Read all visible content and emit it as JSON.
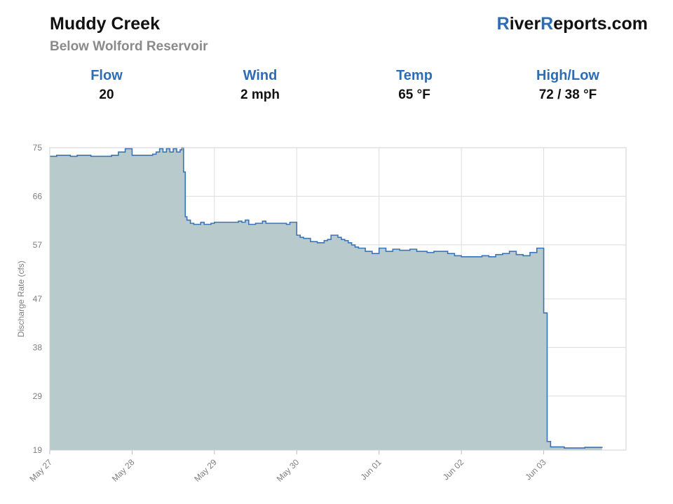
{
  "header": {
    "title": "Muddy Creek",
    "subtitle": "Below Wolford Reservoir",
    "brand_parts": [
      "R",
      "iver",
      "R",
      "eports.com"
    ]
  },
  "stats": [
    {
      "label": "Flow",
      "value": "20"
    },
    {
      "label": "Wind",
      "value": "2 mph"
    },
    {
      "label": "Temp",
      "value": "65 °F"
    },
    {
      "label": "High/Low",
      "value": "72 / 38 °F"
    }
  ],
  "colors": {
    "accent": "#2e6db4",
    "line": "#3a74b8",
    "fill": "#b9cacc",
    "grid": "#dddddd"
  },
  "chart_data": {
    "type": "area",
    "step": true,
    "ylabel": "Discharge Rate (cfs)",
    "xlabel": "",
    "ylim": [
      19,
      75
    ],
    "yticks": [
      19,
      29,
      38,
      47,
      57,
      66,
      75
    ],
    "xlim": [
      "2024-05-27",
      "2024-06-03"
    ],
    "xtick_labels": [
      "May 27",
      "May 28",
      "May 29",
      "May 30",
      "Jun 01",
      "Jun 02",
      "Jun 03"
    ],
    "xtick_dates": [
      "2024-05-27",
      "2024-05-28",
      "2024-05-29",
      "2024-05-30",
      "2024-05-31",
      "2024-06-01",
      "2024-06-02"
    ],
    "grid": true,
    "series": [
      {
        "x": [
          "2024-05-27T00:00",
          "2024-05-27T02:00",
          "2024-05-27T06:00",
          "2024-05-27T08:00",
          "2024-05-27T12:00",
          "2024-05-27T18:00",
          "2024-05-27T20:00",
          "2024-05-27T22:00",
          "2024-05-28T00:00",
          "2024-05-28T06:00",
          "2024-05-28T07:00",
          "2024-05-28T08:00",
          "2024-05-28T09:00",
          "2024-05-28T10:00",
          "2024-05-28T11:00",
          "2024-05-28T12:00",
          "2024-05-28T13:00",
          "2024-05-28T14:00",
          "2024-05-28T14:30",
          "2024-05-28T15:00",
          "2024-05-28T15:30",
          "2024-05-28T16:00",
          "2024-05-28T17:00",
          "2024-05-28T18:00",
          "2024-05-28T19:00",
          "2024-05-28T20:00",
          "2024-05-28T21:00",
          "2024-05-28T23:00",
          "2024-05-29T00:00",
          "2024-05-29T06:00",
          "2024-05-29T07:00",
          "2024-05-29T08:00",
          "2024-05-29T09:00",
          "2024-05-29T10:00",
          "2024-05-29T11:00",
          "2024-05-29T12:00",
          "2024-05-29T14:00",
          "2024-05-29T15:00",
          "2024-05-29T20:00",
          "2024-05-29T21:00",
          "2024-05-29T22:00",
          "2024-05-30T00:00",
          "2024-05-30T01:00",
          "2024-05-30T02:00",
          "2024-05-30T04:00",
          "2024-05-30T06:00",
          "2024-05-30T08:00",
          "2024-05-30T09:00",
          "2024-05-30T10:00",
          "2024-05-30T12:00",
          "2024-05-30T13:00",
          "2024-05-30T14:00",
          "2024-05-30T15:00",
          "2024-05-30T16:00",
          "2024-05-30T17:00",
          "2024-05-30T18:00",
          "2024-05-30T20:00",
          "2024-05-30T22:00",
          "2024-05-31T00:00",
          "2024-05-31T02:00",
          "2024-05-31T04:00",
          "2024-05-31T06:00",
          "2024-05-31T09:00",
          "2024-05-31T11:00",
          "2024-05-31T14:00",
          "2024-05-31T16:00",
          "2024-05-31T20:00",
          "2024-05-31T22:00",
          "2024-06-01T00:00",
          "2024-06-01T02:00",
          "2024-06-01T04:00",
          "2024-06-01T06:00",
          "2024-06-01T08:00",
          "2024-06-01T10:00",
          "2024-06-01T12:00",
          "2024-06-01T14:00",
          "2024-06-01T16:00",
          "2024-06-01T18:00",
          "2024-06-01T20:00",
          "2024-06-01T22:00",
          "2024-06-02T00:00",
          "2024-06-02T01:00",
          "2024-06-02T02:00",
          "2024-06-02T04:00",
          "2024-06-02T06:00",
          "2024-06-02T09:00",
          "2024-06-02T12:00",
          "2024-06-02T15:00",
          "2024-06-02T17:00"
        ],
        "y": [
          73.4,
          73.6,
          73.4,
          73.6,
          73.4,
          73.6,
          74.2,
          74.8,
          73.6,
          73.8,
          74.2,
          74.8,
          74.2,
          74.8,
          74.2,
          74.8,
          74.2,
          74.6,
          75,
          70.5,
          62.2,
          61.6,
          61,
          60.8,
          60.8,
          61.2,
          60.8,
          61,
          61.2,
          61.2,
          61.4,
          61.2,
          61.6,
          60.8,
          60.8,
          61,
          61.4,
          61,
          61,
          60.8,
          61.2,
          58.8,
          58.4,
          58.2,
          57.6,
          57.4,
          57.8,
          58,
          58.8,
          58.4,
          58,
          57.8,
          57.4,
          57,
          56.6,
          56.4,
          55.8,
          55.4,
          56.4,
          55.8,
          56.2,
          56,
          56.2,
          55.8,
          55.6,
          55.8,
          55.4,
          55,
          54.8,
          54.8,
          54.8,
          55,
          54.8,
          55.2,
          55.4,
          55.8,
          55.2,
          55,
          55.6,
          56.4,
          44.4,
          20.6,
          19.6,
          19.6,
          19.4,
          19.4,
          19.5,
          19.5,
          19.6
        ]
      }
    ]
  }
}
